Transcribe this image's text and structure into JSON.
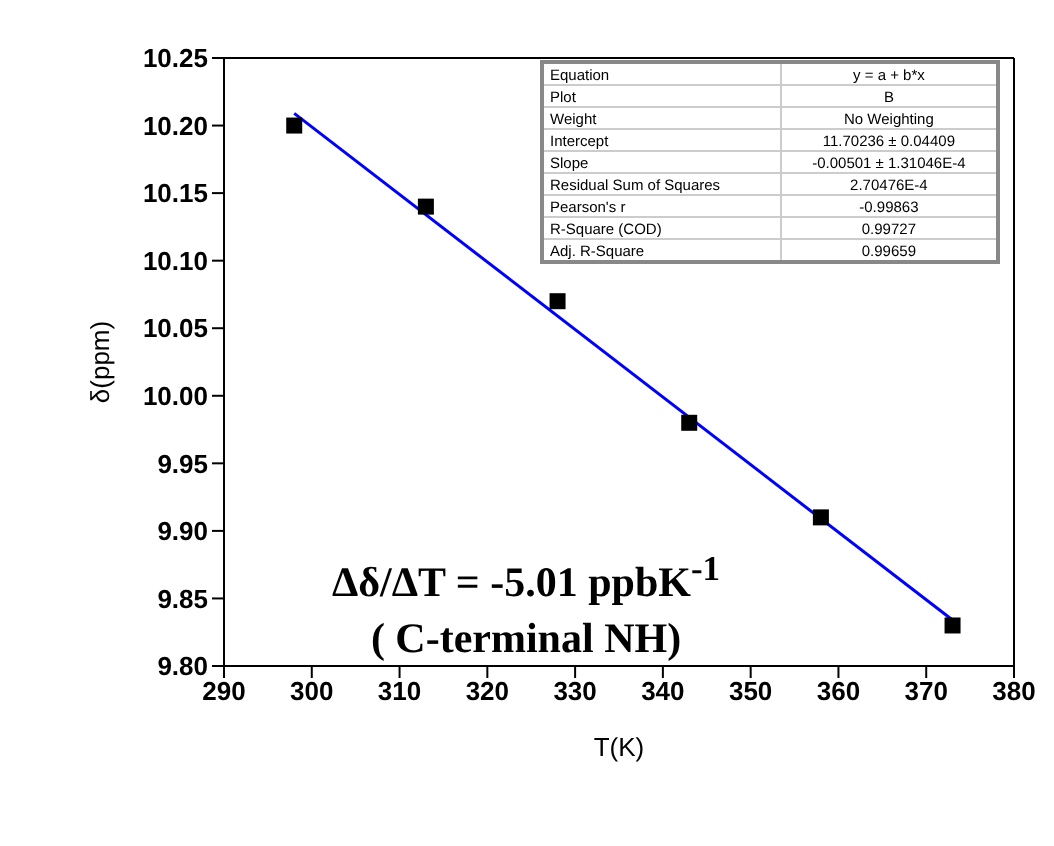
{
  "chart_data": {
    "type": "scatter",
    "xlabel": "T(K)",
    "ylabel": "δ(ppm)",
    "xlim": [
      290,
      380
    ],
    "xticks": [
      290,
      300,
      310,
      320,
      330,
      340,
      350,
      360,
      370,
      380
    ],
    "ylim": [
      9.8,
      10.25
    ],
    "yticks": [
      {
        "value": 9.8,
        "label": "9.80"
      },
      {
        "value": 9.85,
        "label": "9.85"
      },
      {
        "value": 9.9,
        "label": "9.90"
      },
      {
        "value": 9.95,
        "label": "9.95"
      },
      {
        "value": 10.0,
        "label": "10.00"
      },
      {
        "value": 10.05,
        "label": "10.05"
      },
      {
        "value": 10.1,
        "label": "10.10"
      },
      {
        "value": 10.15,
        "label": "10.15"
      },
      {
        "value": 10.2,
        "label": "10.20"
      },
      {
        "value": 10.25,
        "label": "10.25"
      }
    ],
    "grid": false,
    "legend": false,
    "marker": "square",
    "series": [
      {
        "color": "#000000",
        "x": [
          298,
          313,
          328,
          343,
          358,
          373
        ],
        "values": [
          10.2,
          10.14,
          10.07,
          9.98,
          9.91,
          9.83
        ]
      },
      {
        "type": "line",
        "color": "#0000ff",
        "marker": "none",
        "line_style": "solid",
        "x": [
          298,
          373
        ],
        "values": [
          10.209,
          9.834
        ]
      }
    ],
    "annotations": [
      "Δδ/ΔT = -5.01 ppbK$^{-1}$",
      "( C-terminal NH)",
      "Equation",
      "y = a + b*x",
      "Plot",
      "B",
      "Weight",
      "No Weighting",
      "Intercept",
      "11.70236 ± 0.04409",
      "Slope",
      "-0.00501 ± 1.31046E-4",
      "Residual Sum of Squares",
      "2.70476E-4",
      "Pearson's r",
      "-0.99863",
      "R-Square (COD)",
      "0.99727",
      "Adj. R-Square",
      "0.99659"
    ]
  }
}
